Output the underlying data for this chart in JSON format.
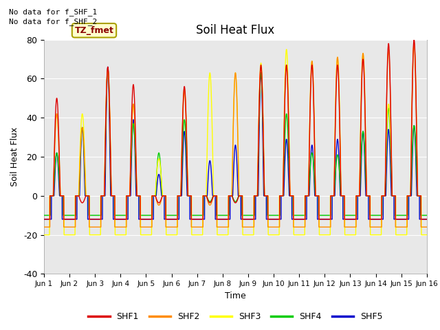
{
  "title": "Soil Heat Flux",
  "ylabel": "Soil Heat Flux",
  "xlabel": "Time",
  "ylim": [
    -40,
    80
  ],
  "plot_bg_color": "#e8e8e8",
  "fig_bg_color": "#ffffff",
  "no_data_text": [
    "No data for f_SHF_1",
    "No data for f_SHF_2"
  ],
  "tz_label": "TZ_fmet",
  "legend_labels": [
    "SHF1",
    "SHF2",
    "SHF3",
    "SHF4",
    "SHF5"
  ],
  "line_colors": [
    "#dd0000",
    "#ff8c00",
    "#ffff00",
    "#00cc00",
    "#0000cc"
  ],
  "xtick_labels": [
    "Jun 1",
    "Jun 2",
    "Jun 3",
    "Jun 4",
    "Jun 5",
    "Jun 6",
    "Jun 7",
    "Jun 8",
    "Jun 9",
    "Jun 10",
    "Jun 11",
    "Jun 12",
    "Jun 13",
    "Jun 14",
    "Jun 15",
    "Jun 16"
  ],
  "days": 15,
  "yticks": [
    -40,
    -20,
    0,
    20,
    40,
    60,
    80
  ],
  "peaks_shf1": [
    50,
    0,
    66,
    57,
    0,
    56,
    0,
    0,
    67,
    67,
    67,
    67,
    70,
    78,
    80
  ],
  "peaks_shf2": [
    42,
    35,
    65,
    47,
    0,
    54,
    0,
    63,
    66,
    67,
    69,
    71,
    73,
    75,
    78
  ],
  "peaks_shf3": [
    42,
    42,
    65,
    47,
    19,
    55,
    63,
    63,
    68,
    75,
    69,
    71,
    73,
    47,
    78
  ],
  "peaks_shf4": [
    22,
    35,
    65,
    37,
    22,
    39,
    0,
    0,
    63,
    42,
    22,
    21,
    33,
    45,
    36
  ],
  "peaks_shf5": [
    22,
    35,
    66,
    39,
    11,
    33,
    18,
    26,
    63,
    29,
    26,
    29,
    33,
    34,
    36
  ],
  "night_shf1": -12,
  "night_shf2": -16,
  "night_shf3": -20,
  "night_shf4": -10,
  "night_shf5": -12
}
